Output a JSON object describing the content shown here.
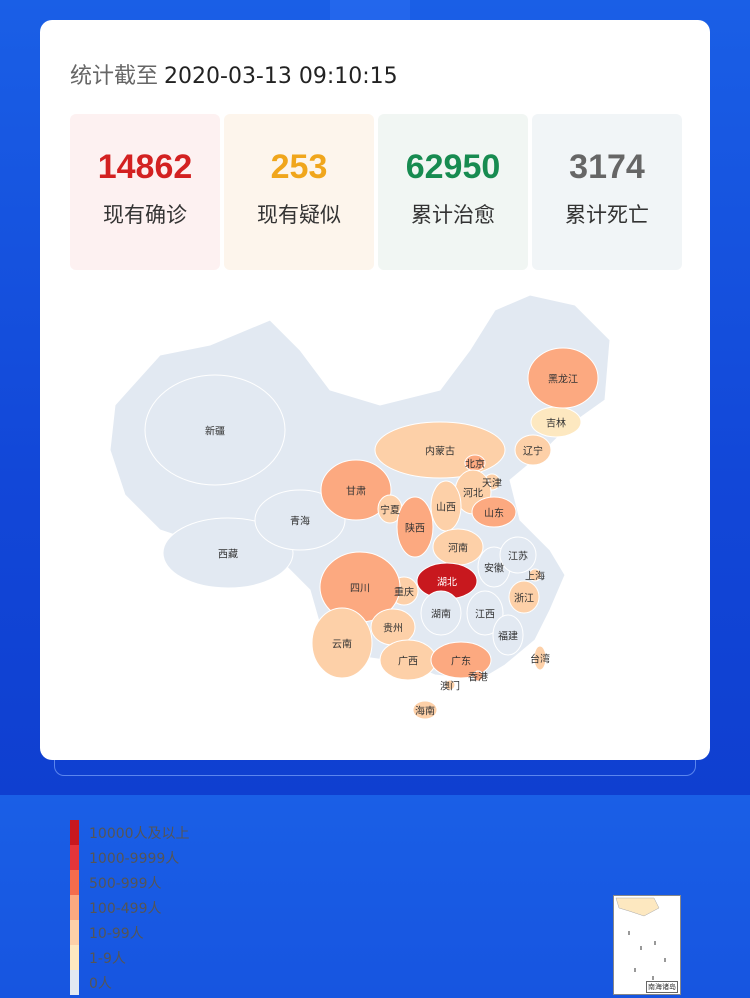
{
  "header": {
    "label": "统计截至",
    "timestamp": "2020-03-13 09:10:15"
  },
  "stats": [
    {
      "value": "14862",
      "label": "现有确诊",
      "color": "#d32121",
      "bg": "#fdf1f1"
    },
    {
      "value": "253",
      "label": "现有疑似",
      "color": "#f0a61c",
      "bg": "#fdf5ec"
    },
    {
      "value": "62950",
      "label": "累计治愈",
      "color": "#178b50",
      "bg": "#f1f6f3"
    },
    {
      "value": "3174",
      "label": "累计死亡",
      "color": "#666666",
      "bg": "#f1f5f7"
    }
  ],
  "legend": [
    {
      "label": "10000人及以上",
      "color": "#c8181e"
    },
    {
      "label": "1000-9999人",
      "color": "#e5353a"
    },
    {
      "label": "500-999人",
      "color": "#f56c4c"
    },
    {
      "label": "100-499人",
      "color": "#fca980"
    },
    {
      "label": "10-99人",
      "color": "#fdd0a8"
    },
    {
      "label": "1-9人",
      "color": "#fde8c0"
    },
    {
      "label": "0人",
      "color": "#e2e9f2"
    }
  ],
  "provinces": [
    {
      "name": "新疆",
      "level": 6
    },
    {
      "name": "西藏",
      "level": 6
    },
    {
      "name": "青海",
      "level": 6
    },
    {
      "name": "甘肃",
      "level": 3
    },
    {
      "name": "宁夏",
      "level": 4
    },
    {
      "name": "陕西",
      "level": 3
    },
    {
      "name": "内蒙古",
      "level": 4
    },
    {
      "name": "北京",
      "level": 3
    },
    {
      "name": "天津",
      "level": 4
    },
    {
      "name": "河北",
      "level": 4
    },
    {
      "name": "山西",
      "level": 4
    },
    {
      "name": "山东",
      "level": 3
    },
    {
      "name": "辽宁",
      "level": 4
    },
    {
      "name": "吉林",
      "level": 5
    },
    {
      "name": "黑龙江",
      "level": 3
    },
    {
      "name": "河南",
      "level": 4
    },
    {
      "name": "湖北",
      "level": 0
    },
    {
      "name": "安徽",
      "level": 6
    },
    {
      "name": "江苏",
      "level": 6
    },
    {
      "name": "上海",
      "level": 4
    },
    {
      "name": "浙江",
      "level": 4
    },
    {
      "name": "江西",
      "level": 6
    },
    {
      "name": "湖南",
      "level": 6
    },
    {
      "name": "重庆",
      "level": 4
    },
    {
      "name": "四川",
      "level": 3
    },
    {
      "name": "贵州",
      "level": 4
    },
    {
      "name": "云南",
      "level": 4
    },
    {
      "name": "广西",
      "level": 4
    },
    {
      "name": "广东",
      "level": 3
    },
    {
      "name": "福建",
      "level": 6
    },
    {
      "name": "台湾",
      "level": 4
    },
    {
      "name": "香港",
      "level": 3
    },
    {
      "name": "澳门",
      "level": 4
    },
    {
      "name": "海南",
      "level": 4
    }
  ],
  "inset_caption": "南海诸岛"
}
